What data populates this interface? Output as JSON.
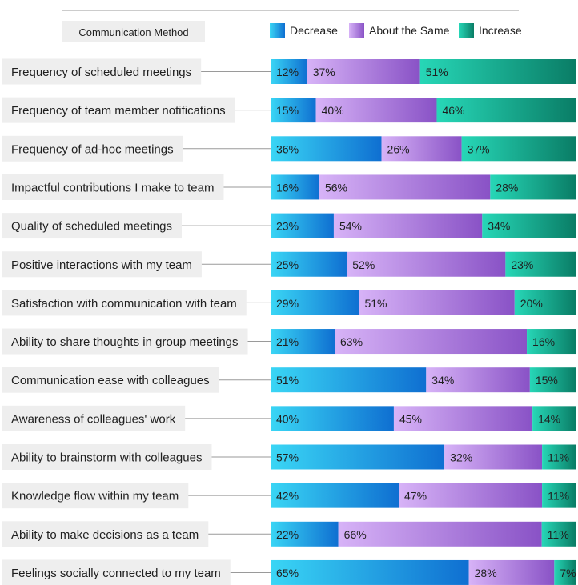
{
  "chart_data": {
    "type": "bar",
    "orientation": "horizontal",
    "stacked": true,
    "normalized": true,
    "header": "Communication Method",
    "legend": {
      "placement": "top-right",
      "entries": [
        "Decrease",
        "About the Same",
        "Increase"
      ]
    },
    "categories": [
      "Frequency of scheduled meetings",
      "Frequency of team member notifications",
      "Frequency of ad-hoc meetings",
      "Impactful contributions I make to team",
      "Quality of scheduled meetings",
      "Positive interactions with my team",
      "Satisfaction with communication with team",
      "Ability to share thoughts in group meetings",
      "Communication ease with colleagues",
      "Awareness of colleagues' work",
      "Ability to brainstorm with colleagues",
      "Knowledge flow within my team",
      "Ability to make decisions as a team",
      "Feelings socially connected to my team"
    ],
    "series": [
      {
        "name": "Decrease",
        "values": [
          12,
          15,
          36,
          16,
          23,
          25,
          29,
          21,
          51,
          40,
          57,
          42,
          22,
          65
        ],
        "color_start": "#3ad6f5",
        "color_end": "#0f6fd1"
      },
      {
        "name": "About the Same",
        "values": [
          37,
          40,
          26,
          56,
          54,
          52,
          51,
          63,
          34,
          45,
          32,
          47,
          66,
          28
        ],
        "color_start": "#d7b3f7",
        "color_end": "#8952c6"
      },
      {
        "name": "Increase",
        "values": [
          51,
          46,
          37,
          28,
          34,
          23,
          20,
          16,
          15,
          14,
          11,
          11,
          11,
          7
        ],
        "color_start": "#27d7b7",
        "color_end": "#0a7d66"
      }
    ],
    "value_format": "{v}%",
    "grid": false
  },
  "colors": {
    "label_background": "#eeeeee",
    "connector_line": "#9a9a9a",
    "top_rule": "#9a9a9a"
  }
}
